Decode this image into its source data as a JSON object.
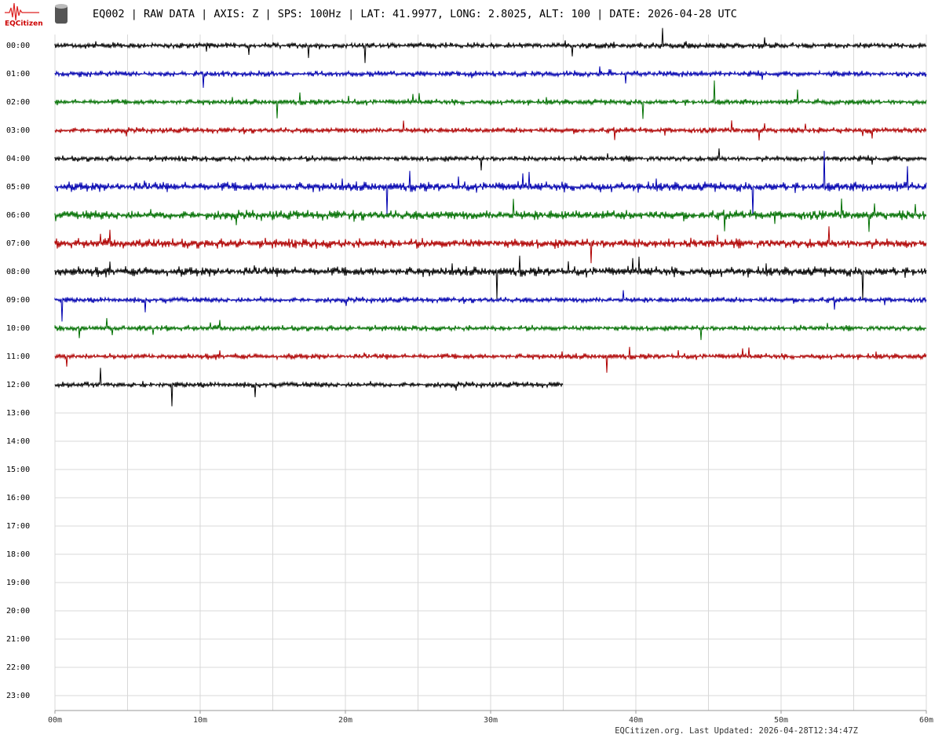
{
  "header": {
    "logo": "EQCitizen",
    "title": "EQ002 | RAW DATA | AXIS: Z | SPS: 100Hz | LAT: 41.9977, LONG: 2.8025, ALT: 100 | DATE: 2026-04-28 UTC"
  },
  "chart_data": {
    "type": "helicorder",
    "rows": [
      "00:00",
      "01:00",
      "02:00",
      "03:00",
      "04:00",
      "05:00",
      "06:00",
      "07:00",
      "08:00",
      "09:00",
      "10:00",
      "11:00",
      "12:00",
      "13:00",
      "14:00",
      "15:00",
      "16:00",
      "17:00",
      "18:00",
      "19:00",
      "20:00",
      "21:00",
      "22:00",
      "23:00"
    ],
    "xlim": [
      0,
      60
    ],
    "xticks": [
      {
        "value": 0,
        "label": "00m"
      },
      {
        "value": 10,
        "label": "10m"
      },
      {
        "value": 20,
        "label": "20m"
      },
      {
        "value": 30,
        "label": "30m"
      },
      {
        "value": 40,
        "label": "40m"
      },
      {
        "value": 50,
        "label": "50m"
      },
      {
        "value": 60,
        "label": "60m"
      }
    ],
    "grid": true,
    "grid_step": 5,
    "series": [
      {
        "color": "#000000",
        "end": 60
      },
      {
        "color": "#0000b0",
        "end": 60
      },
      {
        "color": "#007000",
        "end": 60
      },
      {
        "color": "#b00000",
        "end": 60
      },
      {
        "color": "#000000",
        "end": 60
      },
      {
        "color": "#0000b0",
        "end": 60
      },
      {
        "color": "#007000",
        "end": 60
      },
      {
        "color": "#b00000",
        "end": 60
      },
      {
        "color": "#000000",
        "end": 60
      },
      {
        "color": "#0000b0",
        "end": 60
      },
      {
        "color": "#007000",
        "end": 60
      },
      {
        "color": "#b00000",
        "end": 60
      },
      {
        "color": "#000000",
        "end": 35
      }
    ],
    "footer": "EQCitizen.org. Last Updated: 2026-04-28T12:34:47Z"
  }
}
